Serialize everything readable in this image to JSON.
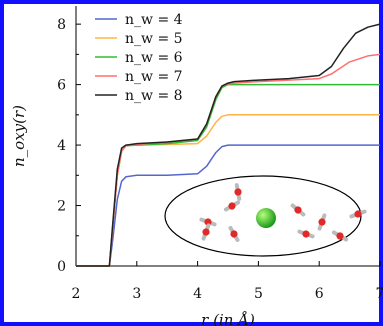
{
  "chart_data": {
    "type": "line",
    "xlabel": "r (in Å)",
    "ylabel": "n_oxy(r)",
    "xlim": [
      2,
      7
    ],
    "ylim": [
      0,
      8.6
    ],
    "x_ticks": [
      "2",
      "3",
      "4",
      "5",
      "6",
      "7"
    ],
    "y_ticks": [
      "0",
      "2",
      "4",
      "6",
      "8"
    ],
    "legend_position": "top-left",
    "series": [
      {
        "name": "n_w = 4",
        "color": "#5566cc",
        "x": [
          2.0,
          2.55,
          2.6,
          2.68,
          2.75,
          2.82,
          3.0,
          3.5,
          4.0,
          4.15,
          4.3,
          4.4,
          4.5,
          4.6,
          5.0,
          6.0,
          7.0
        ],
        "y": [
          0,
          0,
          0.8,
          2.2,
          2.8,
          2.95,
          3.0,
          3.0,
          3.05,
          3.3,
          3.75,
          3.95,
          4.0,
          4.0,
          4.0,
          4.0,
          4.0
        ]
      },
      {
        "name": "n_w = 5",
        "color": "#ffb347",
        "x": [
          2.0,
          2.55,
          2.6,
          2.68,
          2.75,
          2.82,
          3.0,
          3.5,
          4.0,
          4.15,
          4.3,
          4.4,
          4.5,
          4.6,
          5.0,
          6.0,
          7.0
        ],
        "y": [
          0,
          0,
          1.2,
          3.0,
          3.8,
          3.98,
          4.0,
          4.02,
          4.05,
          4.3,
          4.75,
          4.95,
          5.0,
          5.0,
          5.0,
          5.0,
          5.0
        ]
      },
      {
        "name": "n_w = 6",
        "color": "#33bb33",
        "x": [
          2.0,
          2.55,
          2.6,
          2.68,
          2.75,
          2.82,
          3.0,
          3.5,
          4.0,
          4.15,
          4.3,
          4.4,
          4.5,
          4.6,
          5.0,
          6.0,
          7.0
        ],
        "y": [
          0,
          0,
          1.2,
          3.0,
          3.8,
          3.98,
          4.0,
          4.05,
          4.15,
          4.6,
          5.5,
          5.9,
          6.0,
          6.0,
          6.0,
          6.0,
          6.0
        ]
      },
      {
        "name": "n_w = 7",
        "color": "#ff6f6f",
        "x": [
          2.0,
          2.55,
          2.6,
          2.68,
          2.75,
          2.82,
          3.0,
          3.5,
          4.0,
          4.15,
          4.3,
          4.4,
          4.5,
          4.6,
          5.0,
          5.5,
          6.0,
          6.2,
          6.5,
          6.8,
          7.0
        ],
        "y": [
          0,
          0,
          1.2,
          3.0,
          3.8,
          3.98,
          4.02,
          4.1,
          4.2,
          4.7,
          5.6,
          5.95,
          6.02,
          6.05,
          6.1,
          6.15,
          6.2,
          6.35,
          6.75,
          6.95,
          7.0
        ]
      },
      {
        "name": "n_w = 8",
        "color": "#222222",
        "x": [
          2.0,
          2.55,
          2.6,
          2.68,
          2.75,
          2.82,
          3.0,
          3.5,
          4.0,
          4.15,
          4.3,
          4.4,
          4.5,
          4.6,
          5.0,
          5.5,
          6.0,
          6.2,
          6.4,
          6.6,
          6.8,
          7.0
        ],
        "y": [
          0,
          0,
          1.3,
          3.2,
          3.9,
          4.0,
          4.05,
          4.1,
          4.2,
          4.7,
          5.6,
          5.95,
          6.05,
          6.1,
          6.15,
          6.2,
          6.3,
          6.6,
          7.2,
          7.7,
          7.9,
          8.0
        ]
      }
    ]
  }
}
